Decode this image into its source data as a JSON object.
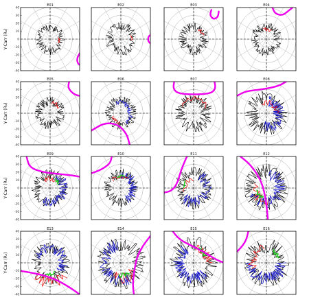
{
  "figure": {
    "ylabel": "Y-Carr (R₀)"
  },
  "chart_data": {
    "type": "scatter",
    "rows": 4,
    "cols": 4,
    "polar_grid": {
      "ring_step": 10,
      "rings": 4,
      "spoke_step_deg": 30
    },
    "colors": {
      "boundary": "#ee00ee",
      "trace_black": "#000000",
      "trace_red": "#ee1111",
      "trace_blue": "#1515cc",
      "trace_green": "#22cc22",
      "grid": "#aaaaaa",
      "axis": "#000000"
    },
    "panels": [
      {
        "title": "E01",
        "row": 0,
        "col": 0,
        "xlim": [
          -40,
          40
        ],
        "ylim": [
          -40,
          40
        ],
        "yticks": [
          40,
          30,
          20,
          10,
          0,
          -10,
          -20,
          -30,
          -40
        ],
        "traces": [
          {
            "color": "trace_black",
            "r": 15,
            "amp": 5,
            "seed": 11,
            "n": 110
          },
          {
            "color": "trace_red",
            "r": 12,
            "amp": 2,
            "seed": 3,
            "n": 8,
            "arc": [
              -20,
              10
            ]
          }
        ],
        "boundary": [
          [
            40,
            -18
          ],
          [
            36,
            -25
          ],
          [
            38,
            -32
          ],
          [
            42,
            -33
          ]
        ]
      },
      {
        "title": "E02",
        "row": 0,
        "col": 1,
        "xlim": [
          -40,
          40
        ],
        "ylim": [
          -40,
          40
        ],
        "yticks": [],
        "traces": [
          {
            "color": "trace_black",
            "r": 16,
            "amp": 6,
            "seed": 21,
            "n": 110
          },
          {
            "color": "trace_red",
            "r": 15,
            "amp": 2,
            "seed": 4,
            "n": 8,
            "arc": [
              -5,
              20
            ]
          }
        ],
        "boundary": [
          [
            41,
            6
          ],
          [
            37,
            3
          ],
          [
            37,
            -3
          ],
          [
            41,
            -6
          ]
        ]
      },
      {
        "title": "E03",
        "row": 0,
        "col": 2,
        "xlim": [
          -40,
          40
        ],
        "ylim": [
          -40,
          40
        ],
        "yticks": [],
        "traces": [
          {
            "color": "trace_black",
            "r": 15,
            "amp": 6,
            "seed": 31,
            "n": 110
          },
          {
            "color": "trace_red",
            "r": 14,
            "amp": 2,
            "seed": 5,
            "n": 10,
            "arc": [
              20,
              60
            ]
          }
        ],
        "boundary": [
          [
            24,
            37
          ],
          [
            22,
            30
          ],
          [
            27,
            25
          ],
          [
            33,
            28
          ],
          [
            34,
            35
          ]
        ]
      },
      {
        "title": "E04",
        "row": 0,
        "col": 3,
        "xlim": [
          -40,
          40
        ],
        "ylim": [
          -40,
          40
        ],
        "yticks": [],
        "traces": [
          {
            "color": "trace_black",
            "r": 16,
            "amp": 6,
            "seed": 41,
            "n": 110
          },
          {
            "color": "trace_red",
            "r": 13,
            "amp": 3,
            "seed": 6,
            "n": 10,
            "arc": [
              60,
              110
            ]
          }
        ],
        "boundary": [
          [
            8,
            40
          ],
          [
            12,
            32
          ],
          [
            22,
            30
          ],
          [
            30,
            36
          ],
          [
            38,
            42
          ]
        ]
      },
      {
        "title": "E05",
        "row": 1,
        "col": 0,
        "xlim": [
          -40,
          40
        ],
        "ylim": [
          -40,
          40
        ],
        "yticks": [
          40,
          30,
          20,
          10,
          0,
          -10,
          -20,
          -30,
          -40
        ],
        "traces": [
          {
            "color": "trace_black",
            "r": 15,
            "amp": 6,
            "seed": 51,
            "n": 110
          },
          {
            "color": "trace_red",
            "r": 14,
            "amp": 3,
            "seed": 7,
            "n": 12,
            "arc": [
              30,
              80
            ]
          }
        ],
        "boundary": [
          [
            26,
            41
          ],
          [
            24,
            32
          ],
          [
            32,
            24
          ],
          [
            40,
            22
          ]
        ]
      },
      {
        "title": "E06",
        "row": 1,
        "col": 1,
        "xlim": [
          -40,
          40
        ],
        "ylim": [
          -40,
          40
        ],
        "yticks": [],
        "traces": [
          {
            "color": "trace_black",
            "r": 16,
            "amp": 6,
            "seed": 61,
            "n": 110
          },
          {
            "color": "trace_blue",
            "r": 13,
            "amp": 4,
            "seed": 8,
            "n": 40,
            "arc": [
              -60,
              120
            ]
          },
          {
            "color": "trace_red",
            "r": 12,
            "amp": 3,
            "seed": 9,
            "n": 12,
            "arc": [
              200,
              260
            ]
          }
        ],
        "boundary": [
          [
            -40,
            -22
          ],
          [
            -22,
            -12
          ],
          [
            -4,
            -14
          ],
          [
            8,
            -26
          ],
          [
            12,
            -40
          ]
        ]
      },
      {
        "title": "E07",
        "row": 1,
        "col": 2,
        "xlim": [
          -40,
          40
        ],
        "ylim": [
          -40,
          40
        ],
        "yticks": [],
        "traces": [
          {
            "color": "trace_black",
            "r": 18,
            "amp": 8,
            "seed": 71,
            "n": 120
          },
          {
            "color": "trace_red",
            "r": 19,
            "amp": 3,
            "seed": 10,
            "n": 14,
            "arc": [
              20,
              150
            ]
          }
        ],
        "boundary": [
          [
            -26,
            42
          ],
          [
            -28,
            30
          ],
          [
            -18,
            24
          ],
          [
            20,
            24
          ],
          [
            30,
            30
          ],
          [
            28,
            42
          ]
        ]
      },
      {
        "title": "E08",
        "row": 1,
        "col": 3,
        "xlim": [
          -40,
          40
        ],
        "ylim": [
          -40,
          40
        ],
        "yticks": [],
        "traces": [
          {
            "color": "trace_black",
            "r": 20,
            "amp": 9,
            "seed": 81,
            "n": 120
          },
          {
            "color": "trace_blue",
            "r": 17,
            "amp": 8,
            "seed": 12,
            "n": 60,
            "arc": [
              -100,
              80
            ]
          },
          {
            "color": "trace_red",
            "r": 14,
            "amp": 4,
            "seed": 13,
            "n": 16,
            "arc": [
              0,
              120
            ]
          }
        ],
        "boundary": [
          [
            -40,
            22
          ],
          [
            -28,
            28
          ],
          [
            -8,
            30
          ],
          [
            16,
            34
          ],
          [
            30,
            42
          ]
        ]
      },
      {
        "title": "E09",
        "row": 2,
        "col": 0,
        "xlim": [
          -40,
          40
        ],
        "ylim": [
          -40,
          40
        ],
        "yticks": [
          40,
          30,
          20,
          10,
          0,
          -10,
          -20,
          -30,
          -40
        ],
        "traces": [
          {
            "color": "trace_black",
            "r": 18,
            "amp": 7,
            "seed": 91,
            "n": 110
          },
          {
            "color": "trace_blue",
            "r": 18,
            "amp": 6,
            "seed": 14,
            "n": 60,
            "arc": [
              -120,
              60
            ]
          },
          {
            "color": "trace_red",
            "r": 12,
            "amp": 3,
            "seed": 15,
            "n": 14,
            "arc": [
              40,
              130
            ]
          },
          {
            "color": "trace_green",
            "r": 13,
            "amp": 2,
            "seed": 16,
            "n": 6,
            "arc": [
              20,
              60
            ]
          }
        ],
        "boundary": [
          [
            -32,
            40
          ],
          [
            -28,
            26
          ],
          [
            -10,
            20
          ],
          [
            10,
            18
          ],
          [
            30,
            16
          ],
          [
            42,
            14
          ]
        ]
      },
      {
        "title": "E10",
        "row": 2,
        "col": 1,
        "xlim": [
          -40,
          40
        ],
        "ylim": [
          -40,
          40
        ],
        "yticks": [],
        "traces": [
          {
            "color": "trace_black",
            "r": 18,
            "amp": 7,
            "seed": 101,
            "n": 110
          },
          {
            "color": "trace_blue",
            "r": 17,
            "amp": 6,
            "seed": 17,
            "n": 50,
            "arc": [
              -60,
              90
            ]
          },
          {
            "color": "trace_red",
            "r": 14,
            "amp": 3,
            "seed": 18,
            "n": 12,
            "arc": [
              50,
              140
            ]
          },
          {
            "color": "trace_green",
            "r": 15,
            "amp": 2,
            "seed": 19,
            "n": 6,
            "arc": [
              70,
              110
            ]
          }
        ],
        "boundary": [
          [
            -12,
            42
          ],
          [
            -14,
            32
          ],
          [
            -22,
            26
          ],
          [
            -30,
            22
          ],
          [
            -42,
            18
          ]
        ]
      },
      {
        "title": "E11",
        "row": 2,
        "col": 2,
        "xlim": [
          -40,
          40
        ],
        "ylim": [
          -40,
          40
        ],
        "yticks": [],
        "traces": [
          {
            "color": "trace_black",
            "r": 19,
            "amp": 8,
            "seed": 111,
            "n": 120
          },
          {
            "color": "trace_blue",
            "r": 18,
            "amp": 7,
            "seed": 20,
            "n": 60,
            "arc": [
              -140,
              60
            ]
          },
          {
            "color": "trace_red",
            "r": 12,
            "amp": 3,
            "seed": 22,
            "n": 14,
            "arc": [
              90,
              200
            ]
          },
          {
            "color": "trace_green",
            "r": 13,
            "amp": 2,
            "seed": 23,
            "n": 6,
            "arc": [
              140,
              180
            ]
          }
        ],
        "boundary": [
          [
            -42,
            -6
          ],
          [
            -30,
            -4
          ],
          [
            -22,
            6
          ],
          [
            -18,
            20
          ],
          [
            -12,
            34
          ],
          [
            -8,
            42
          ]
        ]
      },
      {
        "title": "E12",
        "row": 2,
        "col": 3,
        "xlim": [
          -40,
          40
        ],
        "ylim": [
          -40,
          40
        ],
        "yticks": [],
        "traces": [
          {
            "color": "trace_black",
            "r": 22,
            "amp": 9,
            "seed": 121,
            "n": 120
          },
          {
            "color": "trace_blue",
            "r": 18,
            "amp": 8,
            "seed": 24,
            "n": 70,
            "arc": [
              -160,
              80
            ]
          },
          {
            "color": "trace_red",
            "r": 16,
            "amp": 6,
            "seed": 25,
            "n": 20,
            "arc": [
              160,
              280
            ]
          },
          {
            "color": "trace_green",
            "r": 14,
            "amp": 3,
            "seed": 26,
            "n": 10,
            "arc": [
              190,
              250
            ]
          }
        ],
        "boundary": [
          [
            -38,
            42
          ],
          [
            -22,
            30
          ],
          [
            -10,
            14
          ],
          [
            -4,
            0
          ],
          [
            0,
            -20
          ],
          [
            2,
            -40
          ]
        ]
      },
      {
        "title": "E13",
        "row": 3,
        "col": 0,
        "xlim": [
          -40,
          40
        ],
        "ylim": [
          -40,
          40
        ],
        "yticks": [
          40,
          30,
          20,
          10,
          0,
          -10,
          -20,
          -30,
          -40
        ],
        "traces": [
          {
            "color": "trace_black",
            "r": 20,
            "amp": 8,
            "seed": 131,
            "n": 110
          },
          {
            "color": "trace_blue",
            "r": 18,
            "amp": 7,
            "seed": 27,
            "n": 60,
            "arc": [
              -40,
              160
            ]
          },
          {
            "color": "trace_red",
            "r": 24,
            "amp": 8,
            "seed": 28,
            "n": 20,
            "arc": [
              220,
              320
            ]
          },
          {
            "color": "trace_green",
            "r": 14,
            "amp": 2,
            "seed": 29,
            "n": 8,
            "arc": [
              250,
              300
            ]
          }
        ],
        "boundary": [
          [
            -42,
            -10
          ],
          [
            -28,
            -12
          ],
          [
            -8,
            -16
          ],
          [
            10,
            -22
          ],
          [
            28,
            -32
          ],
          [
            40,
            -40
          ]
        ]
      },
      {
        "title": "E14",
        "row": 3,
        "col": 1,
        "xlim": [
          -40,
          40
        ],
        "ylim": [
          -40,
          40
        ],
        "yticks": [],
        "traces": [
          {
            "color": "trace_black",
            "r": 24,
            "amp": 10,
            "seed": 141,
            "n": 120
          },
          {
            "color": "trace_blue",
            "r": 22,
            "amp": 8,
            "seed": 30,
            "n": 70,
            "arc": [
              100,
              300
            ]
          },
          {
            "color": "trace_red",
            "r": 20,
            "amp": 7,
            "seed": 32,
            "n": 20,
            "arc": [
              240,
              330
            ]
          },
          {
            "color": "trace_green",
            "r": 16,
            "amp": 3,
            "seed": 33,
            "n": 8,
            "arc": [
              260,
              310
            ]
          }
        ],
        "boundary": [
          [
            40,
            34
          ],
          [
            30,
            22
          ],
          [
            22,
            8
          ],
          [
            18,
            -10
          ],
          [
            16,
            -28
          ],
          [
            18,
            -42
          ]
        ]
      },
      {
        "title": "E15",
        "row": 3,
        "col": 2,
        "xlim": [
          -40,
          40
        ],
        "ylim": [
          -40,
          40
        ],
        "yticks": [],
        "traces": [
          {
            "color": "trace_black",
            "r": 24,
            "amp": 10,
            "seed": 151,
            "n": 120
          },
          {
            "color": "trace_blue",
            "r": 20,
            "amp": 8,
            "seed": 34,
            "n": 70,
            "arc": [
              120,
              320
            ]
          },
          {
            "color": "trace_red",
            "r": 20,
            "amp": 6,
            "seed": 35,
            "n": 20,
            "arc": [
              0,
              80
            ]
          },
          {
            "color": "trace_green",
            "r": 18,
            "amp": 3,
            "seed": 36,
            "n": 8,
            "arc": [
              30,
              70
            ]
          }
        ],
        "boundary": [
          [
            -30,
            42
          ],
          [
            -20,
            30
          ],
          [
            -4,
            22
          ],
          [
            14,
            14
          ],
          [
            30,
            4
          ],
          [
            42,
            0
          ]
        ]
      },
      {
        "title": "E16",
        "row": 3,
        "col": 3,
        "xlim": [
          -40,
          40
        ],
        "ylim": [
          -40,
          40
        ],
        "yticks": [],
        "traces": [
          {
            "color": "trace_black",
            "r": 22,
            "amp": 10,
            "seed": 161,
            "n": 120
          },
          {
            "color": "trace_blue",
            "r": 20,
            "amp": 8,
            "seed": 37,
            "n": 70,
            "arc": [
              180,
              360
            ]
          },
          {
            "color": "trace_red",
            "r": 18,
            "amp": 7,
            "seed": 38,
            "n": 20,
            "arc": [
              100,
              200
            ]
          },
          {
            "color": "trace_green",
            "r": 18,
            "amp": 3,
            "seed": 39,
            "n": 8,
            "arc": [
              20,
              60
            ]
          }
        ],
        "boundary": [
          [
            -24,
            42
          ],
          [
            -28,
            26
          ],
          [
            -42,
            12
          ]
        ]
      }
    ]
  }
}
